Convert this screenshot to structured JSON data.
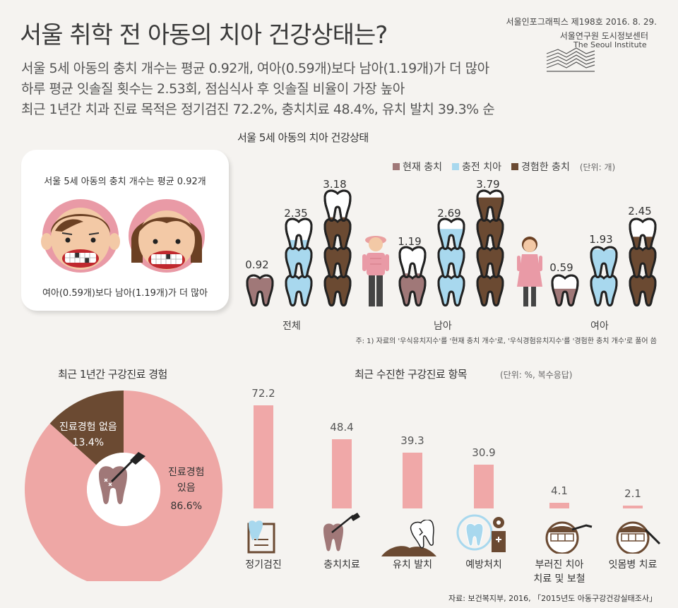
{
  "header": {
    "title": "서울 취학 전 아동의 치아 건강상태는?",
    "subtitles": [
      "서울 5세 아동의 충치 개수는 평균 0.92개, 여아(0.59개)보다 남아(1.19개)가 더 많아",
      "하루 평균 잇솔질 횟수는 2.53회, 점심식사 후 잇솔질 비율이 가장 높아",
      "최근 1년간 치과 진료 목적은 정기검진 72.2%, 충치치료 48.4%, 유치 발치 39.3% 순"
    ],
    "issue": "서울인포그래픽스 제198호 2016. 8. 29.",
    "org_ko": "서울연구원 도시정보센터",
    "org_en": "The Seoul Institute"
  },
  "card": {
    "top_text": "서울 5세 아동의 충치 개수는 평균 0.92개",
    "bottom_text": "여아(0.59개)보다 남아(1.19개)가 더 많아"
  },
  "teeth_chart": {
    "title": "서울 5세 아동의 치아 건강상태",
    "unit": "(단위: 개)",
    "legend": [
      {
        "label": "현재 충치",
        "color": "#a07878"
      },
      {
        "label": "충전 치아",
        "color": "#a8d8ee"
      },
      {
        "label": "경험한 충치",
        "color": "#6b4a32"
      }
    ],
    "groups": [
      {
        "name": "전체",
        "current": 0.92,
        "filled": 2.35,
        "experienced": 3.18
      },
      {
        "name": "남아",
        "current": 1.19,
        "filled": 2.69,
        "experienced": 3.79
      },
      {
        "name": "여아",
        "current": 0.59,
        "filled": 1.93,
        "experienced": 2.45
      }
    ],
    "note": "주: 1) 자료의 '우식유치지수'를 '현재 충치 개수'로, '우식경험유치지수'를 '경험한 충치 개수'로 풀어 씀"
  },
  "chart_data": [
    {
      "type": "pie",
      "title": "최근 1년간 구강진료 경험",
      "slices": [
        {
          "label": "진료경험 있음",
          "value": 86.6,
          "color": "#eea7a5"
        },
        {
          "label": "진료경험 없음",
          "value": 13.4,
          "color": "#6b4a32"
        }
      ],
      "labels": {
        "yes_line1": "진료경험",
        "yes_line2": "있음",
        "yes_value": "86.6%",
        "no_line1": "진료경험 없음",
        "no_value": "13.4%"
      }
    },
    {
      "type": "bar",
      "title": "최근 수진한 구강진료 항목",
      "unit": "(단위: %, 복수응답)",
      "categories": [
        "정기검진",
        "충치치료",
        "유치 발치",
        "예방처치",
        "부러진 치아 치료 및 보철",
        "잇몸병 치료"
      ],
      "category_lines": [
        [
          "정기검진"
        ],
        [
          "충치치료"
        ],
        [
          "유치 발치"
        ],
        [
          "예방처치"
        ],
        [
          "부러진 치아",
          "치료 및 보철"
        ],
        [
          "잇몸병 치료"
        ]
      ],
      "values": [
        72.2,
        48.4,
        39.3,
        30.9,
        4.1,
        2.1
      ],
      "value_labels": [
        "72.2",
        "48.4",
        "39.3",
        "30.9",
        "4.1",
        "2.1"
      ],
      "ylim": [
        0,
        80
      ],
      "color": "#f0a8a8"
    }
  ],
  "source": "자료: 보건복지부, 2016, 「2015년도 아동구강건강실태조사」"
}
